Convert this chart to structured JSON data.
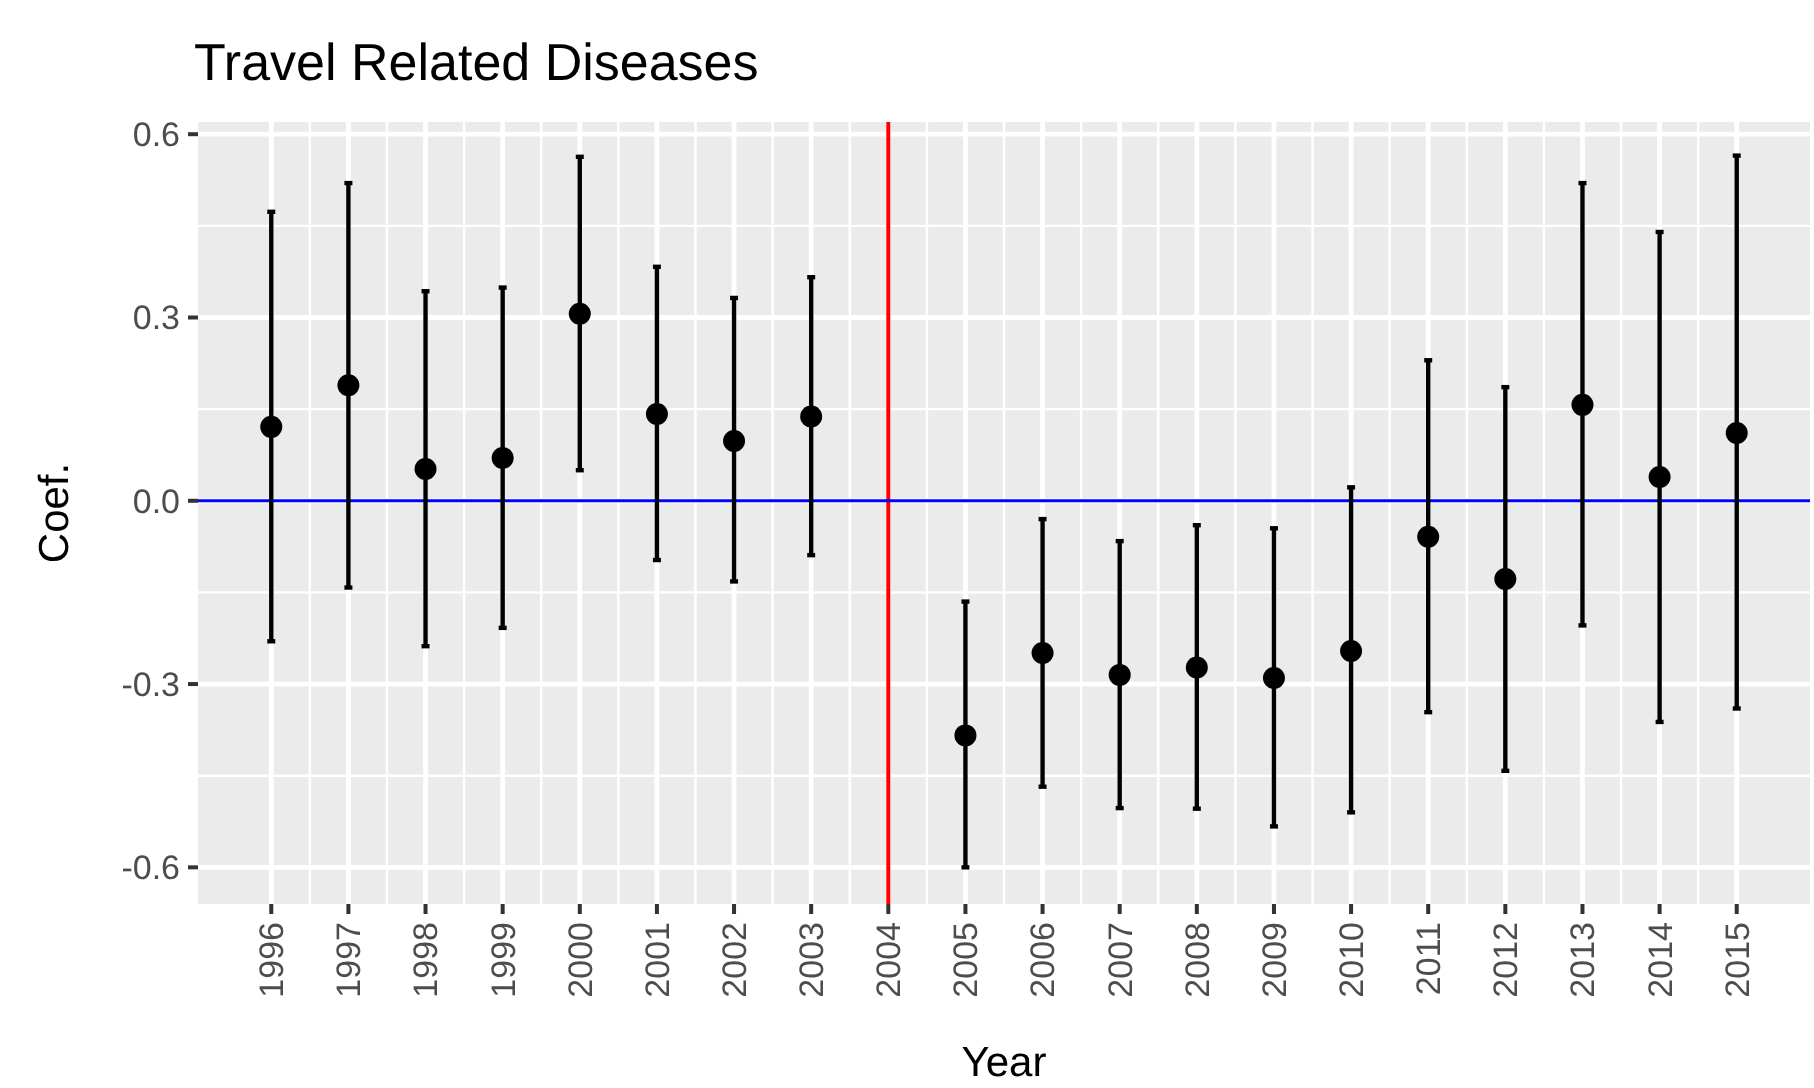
{
  "chart_data": {
    "type": "scatter",
    "title": "Travel Related Diseases",
    "xlabel": "Year",
    "ylabel": "Coef.",
    "x": [
      1996,
      1997,
      1998,
      1999,
      2000,
      2001,
      2002,
      2003,
      2005,
      2006,
      2007,
      2008,
      2009,
      2010,
      2011,
      2012,
      2013,
      2014,
      2015
    ],
    "values": [
      0.121,
      0.189,
      0.052,
      0.07,
      0.306,
      0.142,
      0.098,
      0.138,
      -0.384,
      -0.249,
      -0.285,
      -0.273,
      -0.29,
      -0.246,
      -0.059,
      -0.128,
      0.157,
      0.039,
      0.111
    ],
    "errors": [
      [
        -0.23,
        0.473
      ],
      [
        -0.142,
        0.52
      ],
      [
        -0.238,
        0.343
      ],
      [
        -0.208,
        0.349
      ],
      [
        0.05,
        0.563
      ],
      [
        -0.097,
        0.383
      ],
      [
        -0.132,
        0.332
      ],
      [
        -0.089,
        0.366
      ],
      [
        -0.6,
        -0.165
      ],
      [
        -0.468,
        -0.03
      ],
      [
        -0.503,
        -0.066
      ],
      [
        -0.504,
        -0.04
      ],
      [
        -0.533,
        -0.045
      ],
      [
        -0.51,
        0.022
      ],
      [
        -0.346,
        0.23
      ],
      [
        -0.442,
        0.186
      ],
      [
        -0.204,
        0.52
      ],
      [
        -0.362,
        0.44
      ],
      [
        -0.34,
        0.565
      ]
    ],
    "color": "#000000",
    "marker": "circle",
    "xlim": [
      1995.05,
      2015.95
    ],
    "xticks": [
      1996,
      1997,
      1998,
      1999,
      2000,
      2001,
      2002,
      2003,
      2004,
      2005,
      2006,
      2007,
      2008,
      2009,
      2010,
      2011,
      2012,
      2013,
      2014,
      2015
    ],
    "ylim": [
      -0.66,
      0.62
    ],
    "yticks": [
      {
        "value": -0.6,
        "label": "-0.6"
      },
      {
        "value": -0.3,
        "label": "-0.3"
      },
      {
        "value": 0,
        "label": "0.0"
      },
      {
        "value": 0.3,
        "label": "0.3"
      },
      {
        "value": 0.6,
        "label": "0.6"
      }
    ],
    "ref_lines": [
      {
        "axis": "x",
        "value": 2004,
        "color": "#ff0000"
      },
      {
        "axis": "y",
        "value": 0,
        "color": "#0000ff"
      }
    ],
    "grid": true
  }
}
